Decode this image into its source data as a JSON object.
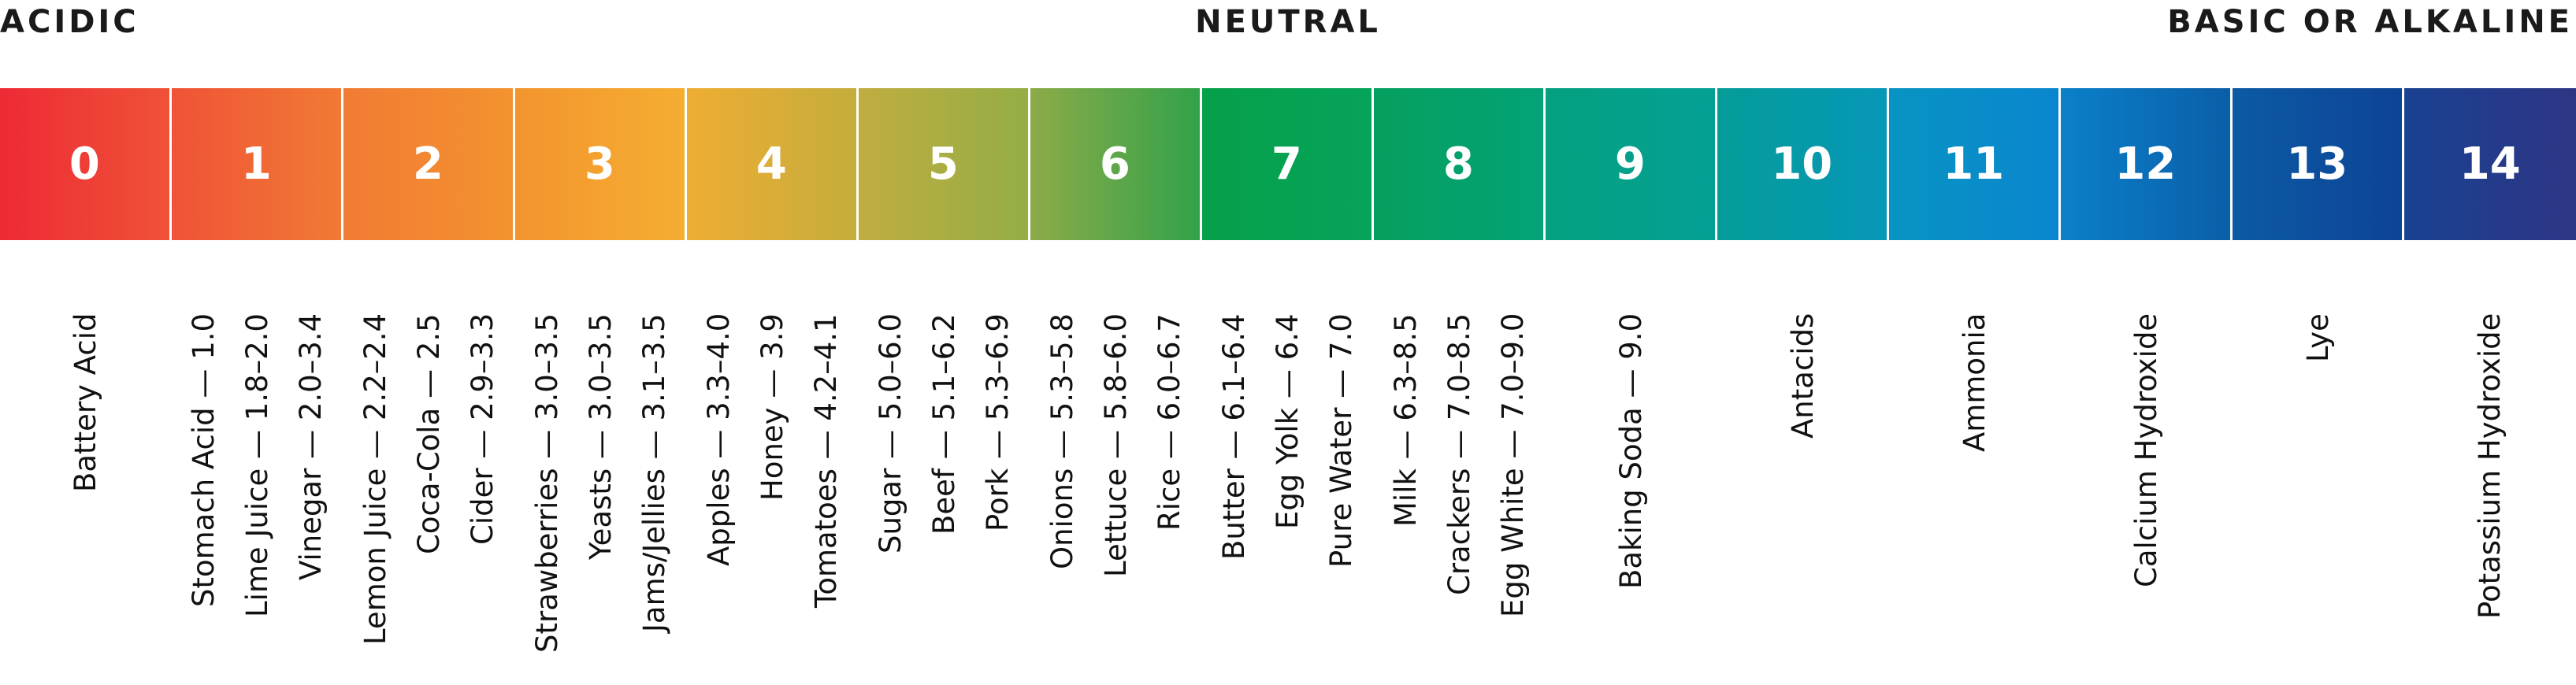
{
  "zones": {
    "acidic": "ACIDIC",
    "neutral": "NEUTRAL",
    "basic": "BASIC OR ALKALINE"
  },
  "scale": [
    {
      "ph": "0",
      "color_from": "#ee2a35",
      "color_to": "#ef5237",
      "examples": [
        "Battery Acid"
      ]
    },
    {
      "ph": "1",
      "color_from": "#ef5337",
      "color_to": "#f17a34",
      "examples": [
        "Stomach Acid — 1.0",
        "Lime Juice — 1.8–2.0",
        "Vinegar — 2.0–3.4"
      ]
    },
    {
      "ph": "2",
      "color_from": "#f17b34",
      "color_to": "#f3932f",
      "examples": [
        "Lemon Juice — 2.2–2.4",
        "Coca-Cola — 2.5",
        "Cider — 2.9–3.3"
      ]
    },
    {
      "ph": "3",
      "color_from": "#f3942f",
      "color_to": "#f4ae30",
      "examples": [
        "Strawberries — 3.0–3.5",
        "Yeasts — 3.0–3.5",
        "Jams/Jellies — 3.1–3.5"
      ]
    },
    {
      "ph": "4",
      "color_from": "#efad33",
      "color_to": "#c4ad3c",
      "examples": [
        "Apples — 3.3–4.0",
        "Honey — 3.9",
        "Tomatoes — 4.2–4.1"
      ]
    },
    {
      "ph": "5",
      "color_from": "#c0ad40",
      "color_to": "#94ad45",
      "examples": [
        "Sugar — 5.0–6.0",
        "Beef — 5.1–6.2",
        "Pork — 5.3–6.9"
      ]
    },
    {
      "ph": "6",
      "color_from": "#8cab48",
      "color_to": "#32a24a",
      "examples": [
        "Onions — 5.3–5.8",
        "Lettuce — 5.8–6.0",
        "Rice — 6.0–6.7"
      ]
    },
    {
      "ph": "7",
      "color_from": "#06a04a",
      "color_to": "#06a35a",
      "examples": [
        "Butter — 6.1–6.4",
        "Egg Yolk — 6.4",
        "Pure Water — 7.0"
      ]
    },
    {
      "ph": "8",
      "color_from": "#05a05e",
      "color_to": "#04a277",
      "examples": [
        "Milk — 6.3–8.5",
        "Crackers — 7.0–8.5",
        "Egg White — 7.0–9.0"
      ]
    },
    {
      "ph": "9",
      "color_from": "#05a07f",
      "color_to": "#05a095",
      "examples": [
        "Baking Soda — 9.0"
      ]
    },
    {
      "ph": "10",
      "color_from": "#059c98",
      "color_to": "#0797b8",
      "examples": [
        "Antacids"
      ]
    },
    {
      "ph": "11",
      "color_from": "#0894c2",
      "color_to": "#0a86cf",
      "examples": [
        "Ammonia"
      ]
    },
    {
      "ph": "12",
      "color_from": "#0a80c9",
      "color_to": "#0b5ea8",
      "examples": [
        "Calcium Hydroxide"
      ]
    },
    {
      "ph": "13",
      "color_from": "#0c5aa4",
      "color_to": "#0d4396",
      "examples": [
        "Lye"
      ]
    },
    {
      "ph": "14",
      "color_from": "#1a4192",
      "color_to": "#2e3584",
      "examples": [
        "Potassium Hydroxide"
      ]
    }
  ]
}
